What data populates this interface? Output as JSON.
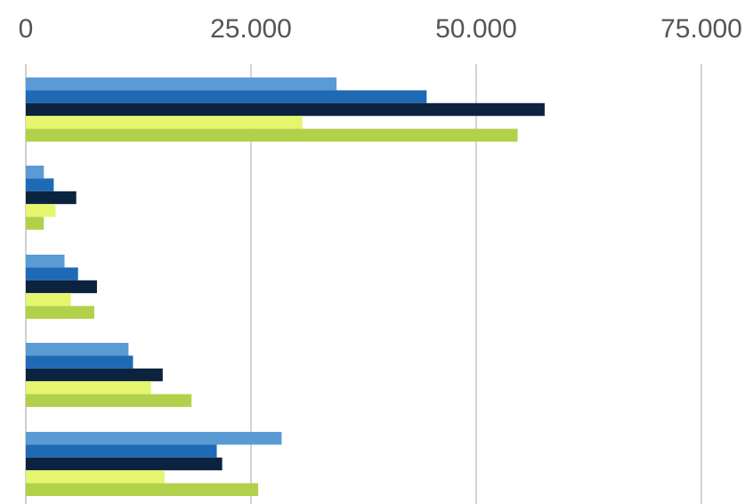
{
  "chart_data": {
    "type": "bar",
    "orientation": "horizontal",
    "title": "",
    "xlabel": "",
    "ylabel": "",
    "x_ticks": [
      0,
      25000,
      50000,
      75000
    ],
    "x_tick_labels": [
      "0",
      "25.000",
      "50.000",
      "75.000"
    ],
    "xlim": [
      0,
      75000
    ],
    "grid": true,
    "legend": "none",
    "categories": [
      "",
      "",
      "",
      "",
      ""
    ],
    "series": [
      {
        "color": "#5b9bd5",
        "values": [
          34500,
          2000,
          4300,
          11400,
          28400
        ]
      },
      {
        "color": "#1f6ab5",
        "values": [
          44500,
          3100,
          5800,
          11900,
          21200
        ]
      },
      {
        "color": "#0c2340",
        "values": [
          57600,
          5600,
          7900,
          15200,
          21800
        ]
      },
      {
        "color": "#e6f56e",
        "values": [
          30700,
          3300,
          5000,
          13900,
          15400
        ]
      },
      {
        "color": "#b2d14b",
        "values": [
          54600,
          2000,
          7600,
          18400,
          25800
        ]
      }
    ]
  }
}
